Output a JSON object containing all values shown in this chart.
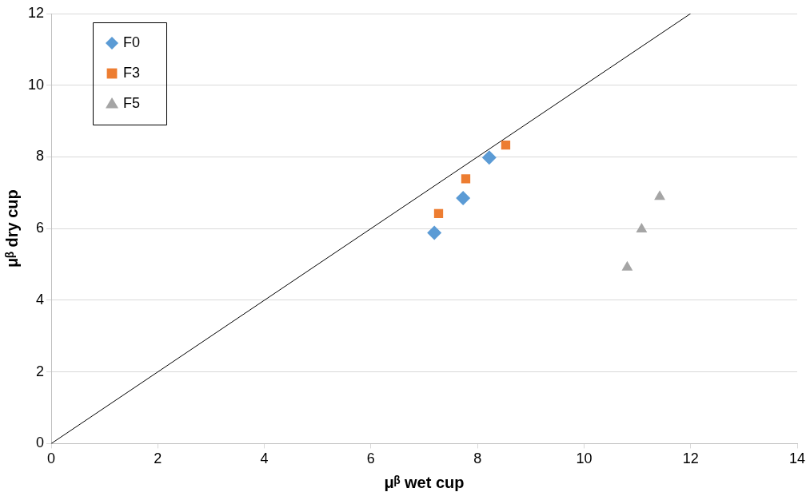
{
  "chart_data": {
    "type": "scatter",
    "xlabel": "μᵝ wet cup",
    "ylabel": "μᵝ dry cup",
    "xlim": [
      0,
      14
    ],
    "xticks": [
      0,
      2,
      4,
      6,
      8,
      10,
      12,
      14
    ],
    "ylim": [
      0,
      12
    ],
    "yticks": [
      0,
      2,
      4,
      6,
      8,
      10,
      12
    ],
    "grid": "y",
    "legend": "top left",
    "series": [
      {
        "name": "F0",
        "color": "#5b9bd5",
        "marker": "diamond",
        "x": [
          7.19,
          7.73,
          8.22
        ],
        "values": [
          5.88,
          6.85,
          7.98
        ]
      },
      {
        "name": "F3",
        "color": "#ed7d31",
        "marker": "square",
        "x": [
          7.27,
          7.78,
          8.53
        ],
        "values": [
          6.42,
          7.39,
          8.33
        ]
      },
      {
        "name": "F5",
        "color": "#a5a5a5",
        "marker": "triangle",
        "x": [
          10.81,
          11.08,
          11.42
        ],
        "values": [
          4.92,
          5.98,
          6.89
        ]
      },
      {
        "type": "line",
        "color": "#000000",
        "marker": "none",
        "x": [
          0,
          12
        ],
        "values": [
          0,
          12
        ]
      }
    ]
  }
}
